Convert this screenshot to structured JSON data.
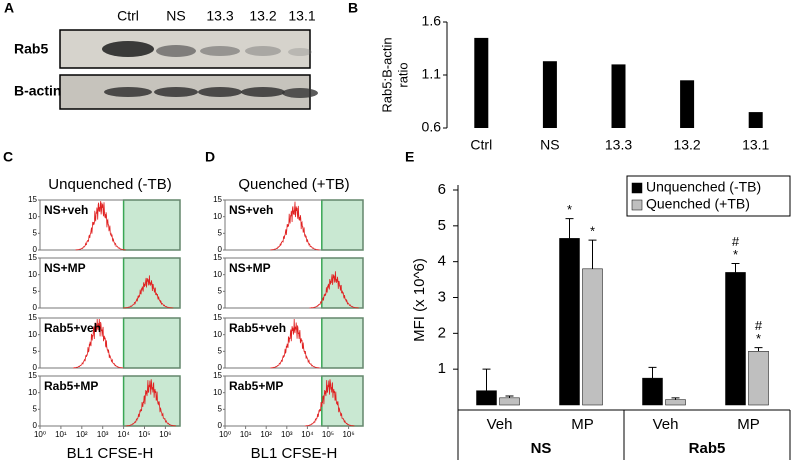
{
  "chart_data": [
    {
      "type": "blot",
      "panel": "A",
      "lanes": [
        "Ctrl",
        "NS",
        "13.3",
        "13.2",
        "13.1"
      ],
      "rows": [
        "Rab5",
        "B-actin"
      ]
    },
    {
      "type": "bar",
      "panel": "B",
      "categories": [
        "Ctrl",
        "NS",
        "13.3",
        "13.2",
        "13.1"
      ],
      "values": [
        1.45,
        1.23,
        1.2,
        1.05,
        0.75
      ],
      "color": "#000000",
      "ylabel": [
        "Rab5:B-actin",
        "ratio"
      ],
      "ylim": [
        0.6,
        1.6
      ],
      "yticks": [
        0.6,
        1.1,
        1.6
      ]
    },
    {
      "type": "flow-histograms",
      "panel": "C",
      "title": "Unquenched (-TB)",
      "xlabel": "BL1 CFSE-H",
      "log_x": true,
      "xlim": [
        1,
        5000000
      ],
      "xticks": [
        {
          "value": 1,
          "label": "10⁰"
        },
        {
          "value": 10,
          "label": "10¹"
        },
        {
          "value": 100,
          "label": "10²"
        },
        {
          "value": 1000,
          "label": "10³"
        },
        {
          "value": 10000,
          "label": "10⁴"
        },
        {
          "value": 100000,
          "label": "10⁵"
        },
        {
          "value": 1000000,
          "label": "10⁶"
        }
      ],
      "ylim": [
        0,
        15
      ],
      "yticks": [
        0,
        5,
        10,
        15
      ],
      "gate_start": 10000,
      "gate_color": "#c9e8d2",
      "gate_edge": "#3aa655",
      "line_color": "#e02020",
      "plots": [
        {
          "name": "NS+veh",
          "peak": 800,
          "height": 13
        },
        {
          "name": "NS+MP",
          "peak": 150000,
          "height": 8
        },
        {
          "name": "Rab5+veh",
          "peak": 600,
          "height": 13
        },
        {
          "name": "Rab5+MP",
          "peak": 200000,
          "height": 12
        }
      ]
    },
    {
      "type": "flow-histograms",
      "panel": "D",
      "title": "Quenched (+TB)",
      "xlabel": "BL1 CFSE-H",
      "log_x": true,
      "xlim": [
        1,
        5000000
      ],
      "xticks": [
        {
          "value": 1,
          "label": "10⁰"
        },
        {
          "value": 10,
          "label": "10¹"
        },
        {
          "value": 100,
          "label": "10²"
        },
        {
          "value": 1000,
          "label": "10³"
        },
        {
          "value": 10000,
          "label": "10⁴"
        },
        {
          "value": 100000,
          "label": "10⁵"
        },
        {
          "value": 1000000,
          "label": "10⁶"
        }
      ],
      "ylim": [
        0,
        15
      ],
      "yticks": [
        0,
        5,
        10,
        15
      ],
      "gate_start": 50000,
      "gate_color": "#c9e8d2",
      "gate_edge": "#3aa655",
      "line_color": "#e02020",
      "plots": [
        {
          "name": "NS+veh",
          "peak": 2500,
          "height": 12
        },
        {
          "name": "NS+MP",
          "peak": 200000,
          "height": 9
        },
        {
          "name": "Rab5+veh",
          "peak": 2500,
          "height": 12
        },
        {
          "name": "Rab5+MP",
          "peak": 120000,
          "height": 12
        }
      ]
    },
    {
      "type": "grouped-bar",
      "panel": "E",
      "ylabel": "MFI (x 10^6)",
      "categories": [
        "Veh",
        "MP",
        "Veh",
        "MP"
      ],
      "groups": [
        "NS",
        "Rab5"
      ],
      "ylim": [
        0,
        6
      ],
      "yticks": [
        1,
        2,
        3,
        4,
        5,
        6
      ],
      "legend": "top-right",
      "series": [
        {
          "name": "Unquenched (-TB)",
          "color": "#000000",
          "values": [
            0.4,
            4.65,
            0.75,
            3.7
          ],
          "errors": [
            0.6,
            0.55,
            0.3,
            0.25
          ],
          "annotations": [
            null,
            [
              "*"
            ],
            null,
            [
              "#",
              "*"
            ]
          ]
        },
        {
          "name": "Quenched (+TB)",
          "color": "#bfbfbf",
          "values": [
            0.2,
            3.8,
            0.15,
            1.5
          ],
          "errors": [
            0.05,
            0.8,
            0.05,
            0.1
          ],
          "annotations": [
            null,
            [
              "*"
            ],
            null,
            [
              "#",
              "*"
            ]
          ]
        }
      ]
    }
  ]
}
